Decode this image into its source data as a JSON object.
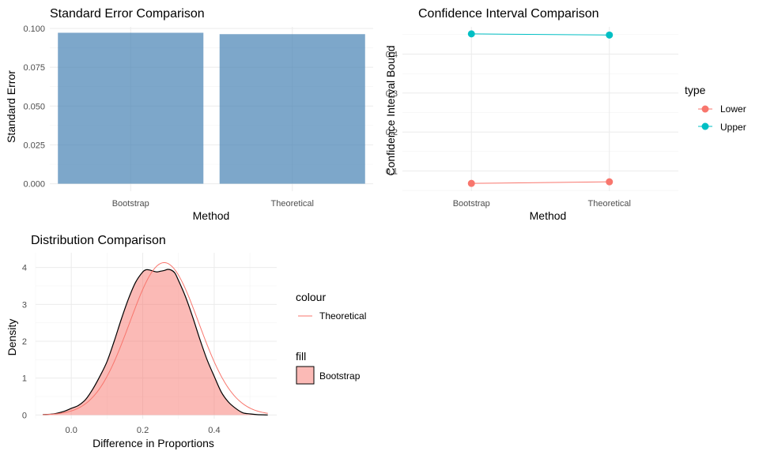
{
  "chart_data": [
    {
      "type": "bar",
      "title": "Standard Error Comparison",
      "xlabel": "Method",
      "ylabel": "Standard Error",
      "categories": [
        "Bootstrap",
        "Theoretical"
      ],
      "values": [
        0.0972,
        0.0963
      ],
      "ylim": [
        -0.0048,
        0.101
      ],
      "yticks": [
        0.0,
        0.025,
        0.05,
        0.075,
        0.1
      ],
      "ytick_labels": [
        "0.000",
        "0.025",
        "0.050",
        "0.075",
        "0.100"
      ],
      "bar_color": "#4682B4",
      "grid": true
    },
    {
      "type": "line",
      "title": "Confidence Interval Comparison",
      "xlabel": "Method",
      "ylabel": "Confidence Interval Bound",
      "categories": [
        "Bootstrap",
        "Theoretical"
      ],
      "ylim": [
        0.048,
        0.47
      ],
      "yticks": [
        0.1,
        0.2,
        0.3,
        0.4
      ],
      "ytick_labels": [
        "0.1",
        "0.2",
        "0.3",
        "0.4"
      ],
      "legend": {
        "title": "type",
        "position": "right"
      },
      "series": [
        {
          "name": "Lower",
          "values": [
            0.068,
            0.072
          ],
          "color": "#F8766D"
        },
        {
          "name": "Upper",
          "values": [
            0.452,
            0.449
          ],
          "color": "#00BFC4"
        }
      ],
      "grid": true
    },
    {
      "type": "area",
      "title": "Distribution Comparison",
      "xlabel": "Difference in Proportions",
      "ylabel": "Density",
      "xlim": [
        -0.1,
        0.575
      ],
      "ylim": [
        -0.1,
        4.4
      ],
      "xticks": [
        0.0,
        0.2,
        0.4
      ],
      "xtick_labels": [
        "0.0",
        "0.2",
        "0.4"
      ],
      "yticks": [
        0,
        1,
        2,
        3,
        4
      ],
      "ytick_labels": [
        "0",
        "1",
        "2",
        "3",
        "4"
      ],
      "legend": {
        "position": "right",
        "colour_title": "colour",
        "fill_title": "fill"
      },
      "series": [
        {
          "name": "Bootstrap",
          "kind": "density-area",
          "fill": "#F8766D",
          "fill_opacity": 0.5,
          "stroke": "#000000",
          "x": [
            -0.08,
            -0.05,
            -0.02,
            0.0,
            0.02,
            0.04,
            0.06,
            0.08,
            0.1,
            0.12,
            0.14,
            0.16,
            0.18,
            0.2,
            0.21,
            0.22,
            0.23,
            0.24,
            0.25,
            0.26,
            0.27,
            0.28,
            0.29,
            0.3,
            0.32,
            0.34,
            0.36,
            0.38,
            0.4,
            0.42,
            0.44,
            0.46,
            0.48,
            0.5,
            0.52,
            0.55
          ],
          "y": [
            0.01,
            0.03,
            0.1,
            0.18,
            0.26,
            0.42,
            0.7,
            1.05,
            1.45,
            2.0,
            2.6,
            3.15,
            3.6,
            3.88,
            3.94,
            3.93,
            3.9,
            3.88,
            3.9,
            3.92,
            3.95,
            3.93,
            3.85,
            3.65,
            3.2,
            2.65,
            2.05,
            1.5,
            1.05,
            0.62,
            0.35,
            0.18,
            0.06,
            0.03,
            0.01,
            0.0
          ]
        },
        {
          "name": "Theoretical",
          "kind": "normal-curve",
          "stroke": "#F8766D",
          "mean": 0.26,
          "sd": 0.0965,
          "x_range": [
            -0.08,
            0.55
          ]
        }
      ],
      "grid": true
    }
  ]
}
